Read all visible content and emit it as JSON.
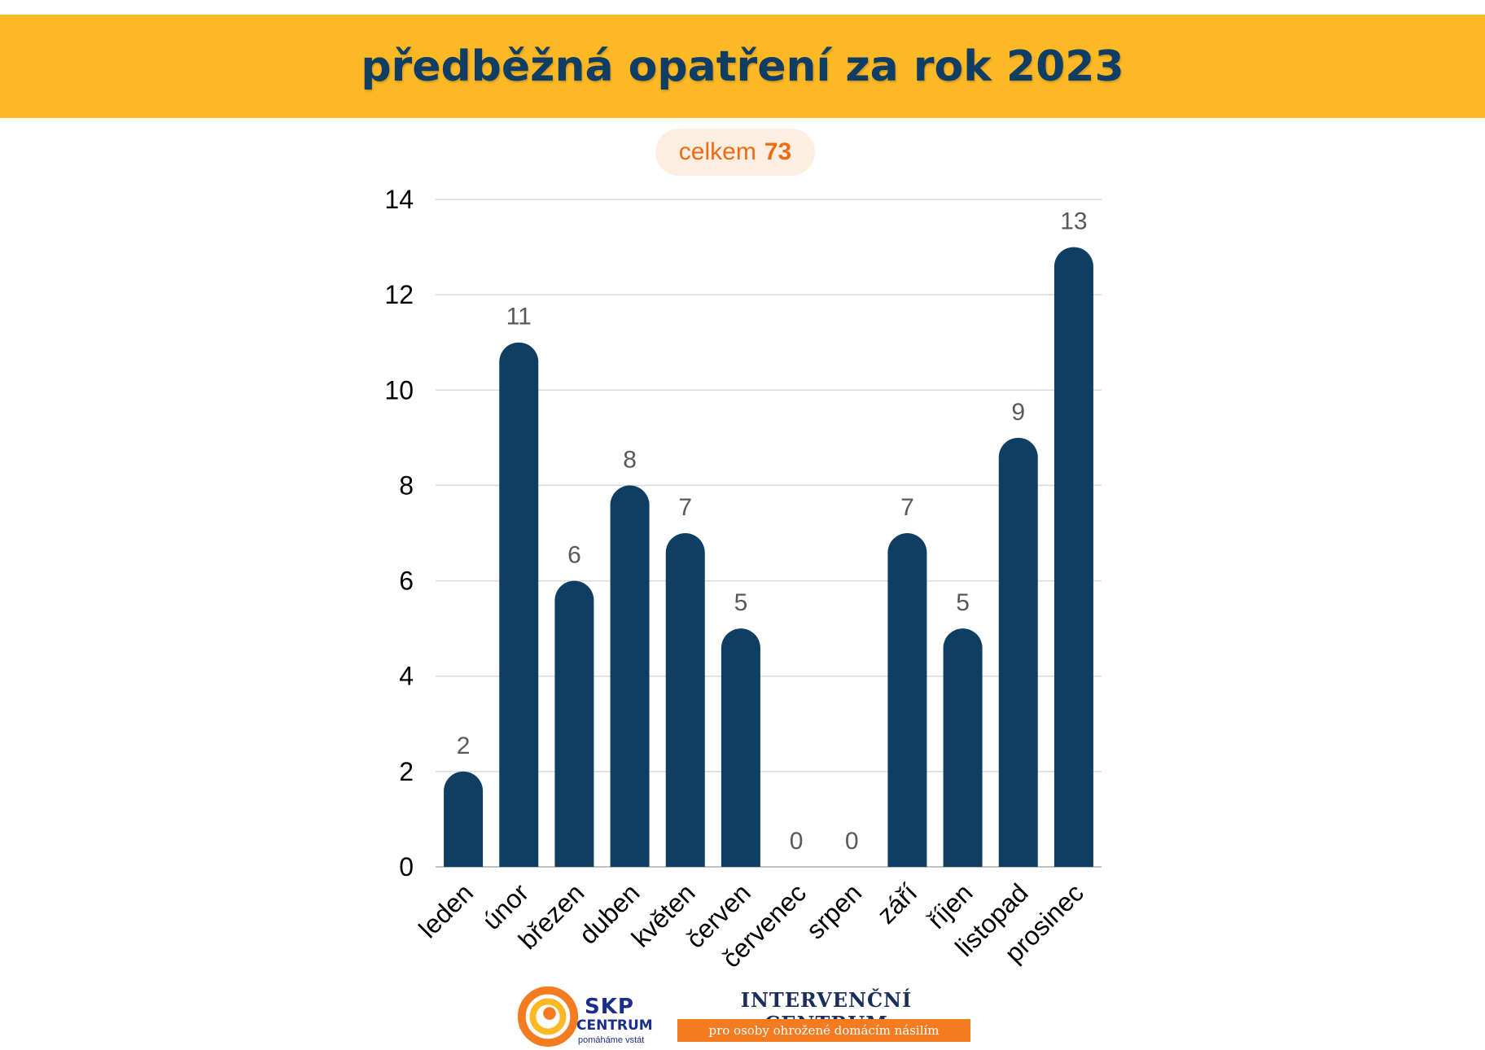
{
  "header": {
    "title": "předběžná opatření za rok 2023"
  },
  "total": {
    "label": "celkem",
    "value": "73"
  },
  "chart_data": {
    "type": "bar",
    "title": "",
    "xlabel": "",
    "ylabel": "",
    "categories": [
      "leden",
      "únor",
      "březen",
      "duben",
      "květen",
      "červen",
      "červenec",
      "srpen",
      "září",
      "říjen",
      "listopad",
      "prosinec"
    ],
    "values": [
      2,
      11,
      6,
      8,
      7,
      5,
      0,
      0,
      7,
      5,
      9,
      13
    ],
    "ylim": [
      0,
      14
    ],
    "yticks": [
      0,
      2,
      4,
      6,
      8,
      10,
      12,
      14
    ],
    "grid": true,
    "data_labels": true,
    "bar_color": "#0e3f63",
    "label_color": "#595959"
  },
  "footer": {
    "skp_name": "SKP",
    "skp_sub": "CENTRUM",
    "skp_tagline": "pomáháme vstát",
    "ic_name": "INTERVENČNÍ CENTRUM",
    "ic_tagline": "pro osoby ohrožené domácím násilím",
    "colors": {
      "orange": "#f47b20",
      "navy": "#1a2e8c"
    }
  }
}
